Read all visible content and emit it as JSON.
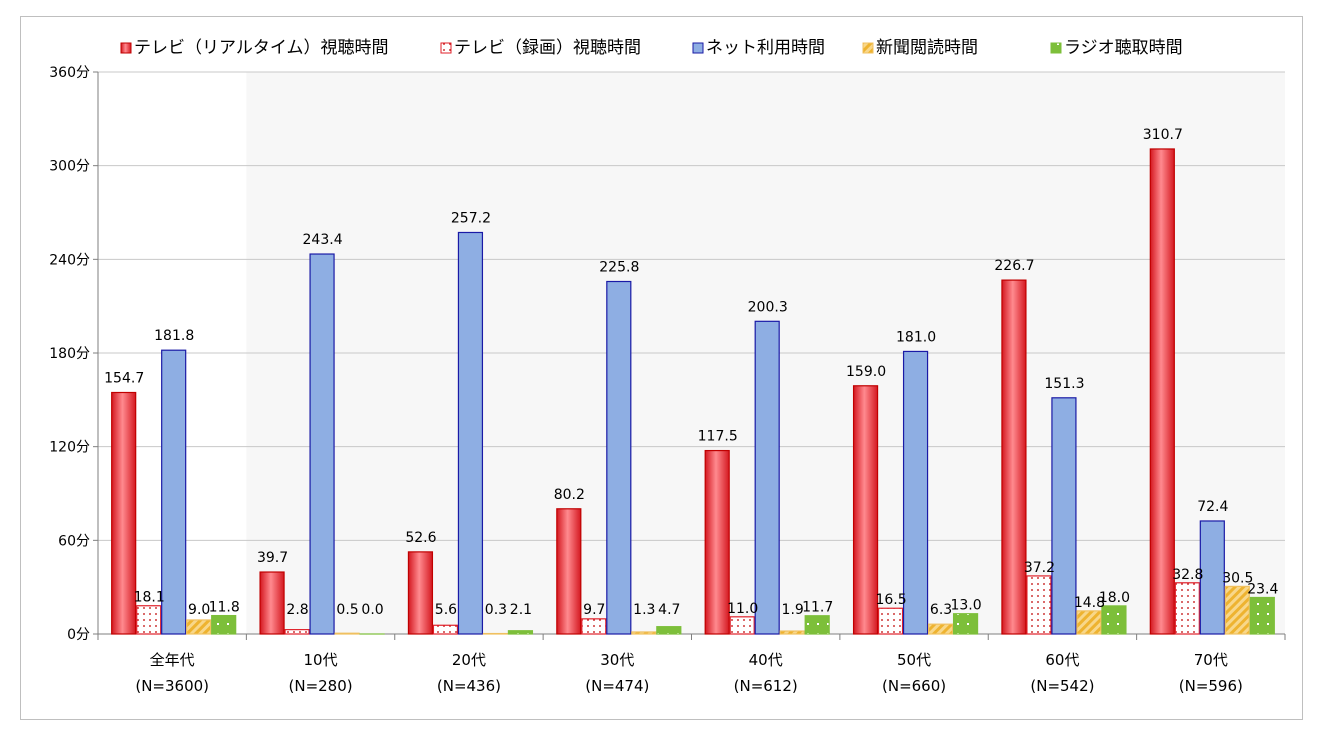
{
  "chart_data": {
    "type": "bar",
    "title": "",
    "xlabel": "",
    "ylabel": "",
    "ylim": [
      0,
      360
    ],
    "y_ticks": [
      "0分",
      "60分",
      "120分",
      "180分",
      "240分",
      "300分",
      "360分"
    ],
    "y_tick_values": [
      0,
      60,
      120,
      180,
      240,
      300,
      360
    ],
    "grid": true,
    "legend_position": "top",
    "categories": [
      {
        "name": "全年代",
        "n": "(N=3600)"
      },
      {
        "name": "10代",
        "n": "(N=280)"
      },
      {
        "name": "20代",
        "n": "(N=436)"
      },
      {
        "name": "30代",
        "n": "(N=474)"
      },
      {
        "name": "40代",
        "n": "(N=612)"
      },
      {
        "name": "50代",
        "n": "(N=660)"
      },
      {
        "name": "60代",
        "n": "(N=542)"
      },
      {
        "name": "70代",
        "n": "(N=596)"
      }
    ],
    "series": [
      {
        "name": "テレビ（リアルタイム）視聴時間",
        "color": "#e8303a",
        "pattern": "solid-gradient",
        "values": [
          154.7,
          39.7,
          52.6,
          80.2,
          117.5,
          159.0,
          226.7,
          310.7
        ],
        "labels": [
          "154.7",
          "39.7",
          "52.6",
          "80.2",
          "117.5",
          "159.0",
          "226.7",
          "310.7"
        ]
      },
      {
        "name": "テレビ（録画）視聴時間",
        "color": "#e0202a",
        "pattern": "dots",
        "values": [
          18.1,
          2.8,
          5.6,
          9.7,
          11.0,
          16.5,
          37.2,
          32.8
        ],
        "labels": [
          "18.1",
          "2.8",
          "5.6",
          "9.7",
          "11.0",
          "16.5",
          "37.2",
          "32.8"
        ]
      },
      {
        "name": "ネット利用時間",
        "color": "#8eaee3",
        "pattern": "solid",
        "values": [
          181.8,
          243.4,
          257.2,
          225.8,
          200.3,
          181.0,
          151.3,
          72.4
        ],
        "labels": [
          "181.8",
          "243.4",
          "257.2",
          "225.8",
          "200.3",
          "181.0",
          "151.3",
          "72.4"
        ]
      },
      {
        "name": "新聞閲読時間",
        "color": "#f5c35a",
        "pattern": "diagonal",
        "values": [
          9.0,
          0.5,
          0.3,
          1.3,
          1.9,
          6.3,
          14.8,
          30.5
        ],
        "labels": [
          "9.0",
          "0.5",
          "0.3",
          "1.3",
          "1.9",
          "6.3",
          "14.8",
          "30.5"
        ]
      },
      {
        "name": "ラジオ聴取時間",
        "color": "#7dbf3a",
        "pattern": "checker",
        "values": [
          11.8,
          0.0,
          2.1,
          4.7,
          11.7,
          13.0,
          18.0,
          23.4
        ],
        "labels": [
          "11.8",
          "0.0",
          "2.1",
          "4.7",
          "11.7",
          "13.0",
          "18.0",
          "23.4"
        ]
      }
    ]
  }
}
